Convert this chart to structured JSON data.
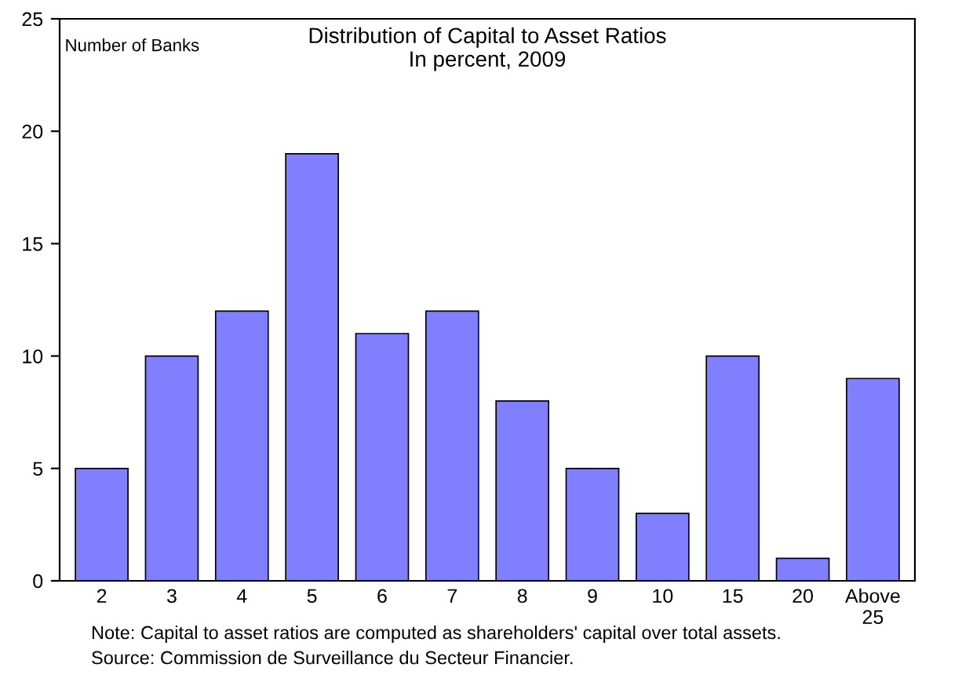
{
  "chart_data": {
    "type": "bar",
    "title": "Distribution of Capital to Asset Ratios\nIn percent, 2009",
    "ylabel": "Number of Banks",
    "categories": [
      "2",
      "3",
      "4",
      "5",
      "6",
      "7",
      "8",
      "9",
      "10",
      "15",
      "20",
      "Above\n25"
    ],
    "values": [
      5,
      10,
      12,
      19,
      11,
      12,
      8,
      5,
      3,
      10,
      1,
      9
    ],
    "color": "#8080ff",
    "ylim": [
      0,
      25
    ],
    "yticks": [
      0,
      5,
      10,
      15,
      20,
      25
    ],
    "grid": false,
    "legend": false,
    "annotations": [
      "Note: Capital to asset ratios are computed as shareholders' capital over total assets.",
      "Source: Commission de Surveillance du Secteur Financier."
    ]
  }
}
